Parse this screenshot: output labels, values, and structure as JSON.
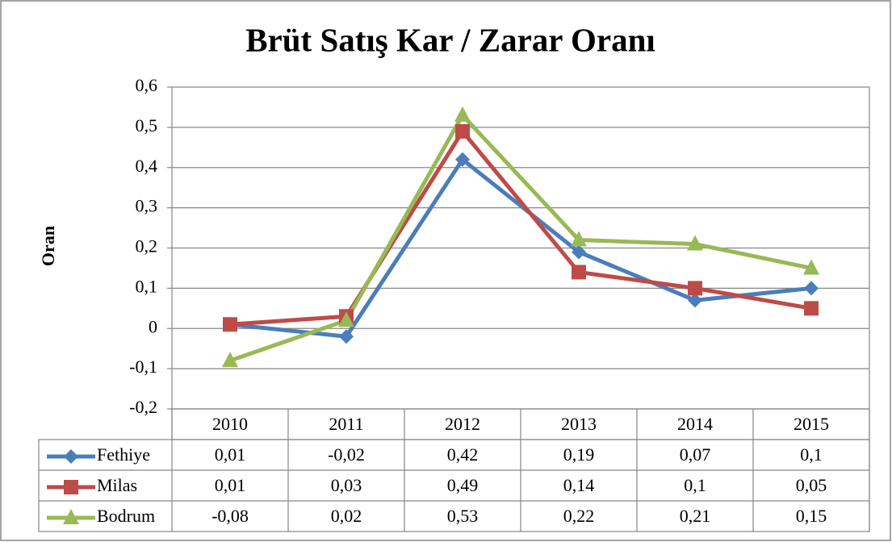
{
  "chart_data": {
    "type": "line",
    "title": "Brüt Satış Kar / Zarar Oranı",
    "y_label": "Oran",
    "categories": [
      "2010",
      "2011",
      "2012",
      "2013",
      "2014",
      "2015"
    ],
    "series": [
      {
        "name": "Fethiye",
        "color": "#4a7ebb",
        "marker": "diamond",
        "values": [
          0.01,
          -0.02,
          0.42,
          0.19,
          0.07,
          0.1
        ],
        "value_labels": [
          "0,01",
          "-0,02",
          "0,42",
          "0,19",
          "0,07",
          "0,1"
        ]
      },
      {
        "name": "Milas",
        "color": "#be4b48",
        "marker": "square",
        "values": [
          0.01,
          0.03,
          0.49,
          0.14,
          0.1,
          0.05
        ],
        "value_labels": [
          "0,01",
          "0,03",
          "0,49",
          "0,14",
          "0,1",
          "0,05"
        ]
      },
      {
        "name": "Bodrum",
        "color": "#98b954",
        "marker": "triangle",
        "values": [
          -0.08,
          0.02,
          0.53,
          0.22,
          0.21,
          0.15
        ],
        "value_labels": [
          "-0,08",
          "0,02",
          "0,53",
          "0,22",
          "0,21",
          "0,15"
        ]
      }
    ],
    "ylim": [
      -0.2,
      0.6
    ],
    "yticks": [
      {
        "value": 0.6,
        "label": "0,6"
      },
      {
        "value": 0.5,
        "label": "0,5"
      },
      {
        "value": 0.4,
        "label": "0,4"
      },
      {
        "value": 0.3,
        "label": "0,3"
      },
      {
        "value": 0.2,
        "label": "0,2"
      },
      {
        "value": 0.1,
        "label": "0,1"
      },
      0,
      {
        "value": -0.1,
        "label": "-0,1"
      },
      {
        "value": -0.2,
        "label": "-0,2"
      }
    ],
    "grid": true,
    "data_table": true
  }
}
